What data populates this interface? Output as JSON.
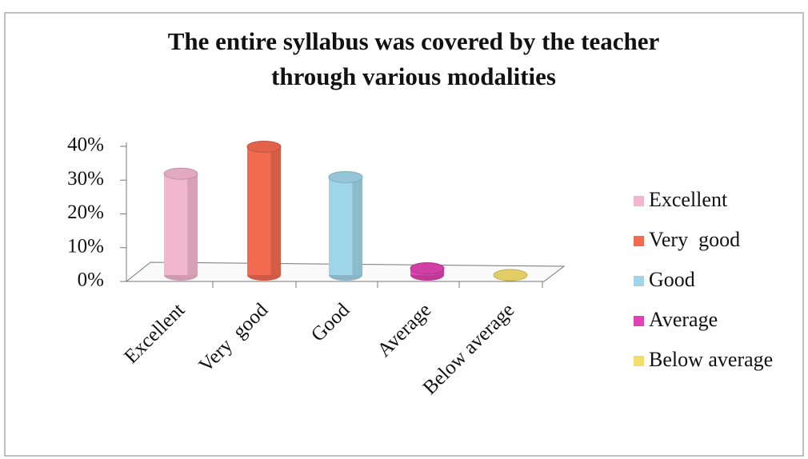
{
  "chart_data": {
    "type": "bar",
    "title": [
      "The entire syllabus was covered by the teacher",
      "through various modalities"
    ],
    "categories": [
      "Excellent",
      "Very  good",
      "Good",
      "Average",
      "Below average"
    ],
    "values": [
      30,
      38,
      29,
      2,
      0
    ],
    "colors": [
      "#f3b6cf",
      "#f26a50",
      "#9fd5e8",
      "#e043b2",
      "#f3dd6c"
    ],
    "ylim": [
      0,
      40
    ],
    "yticks": [
      {
        "value": 0,
        "label": "0%"
      },
      {
        "value": 10,
        "label": "10%"
      },
      {
        "value": 20,
        "label": "20%"
      },
      {
        "value": 30,
        "label": "30%"
      },
      {
        "value": 40,
        "label": "40%"
      }
    ],
    "legend": "right"
  }
}
